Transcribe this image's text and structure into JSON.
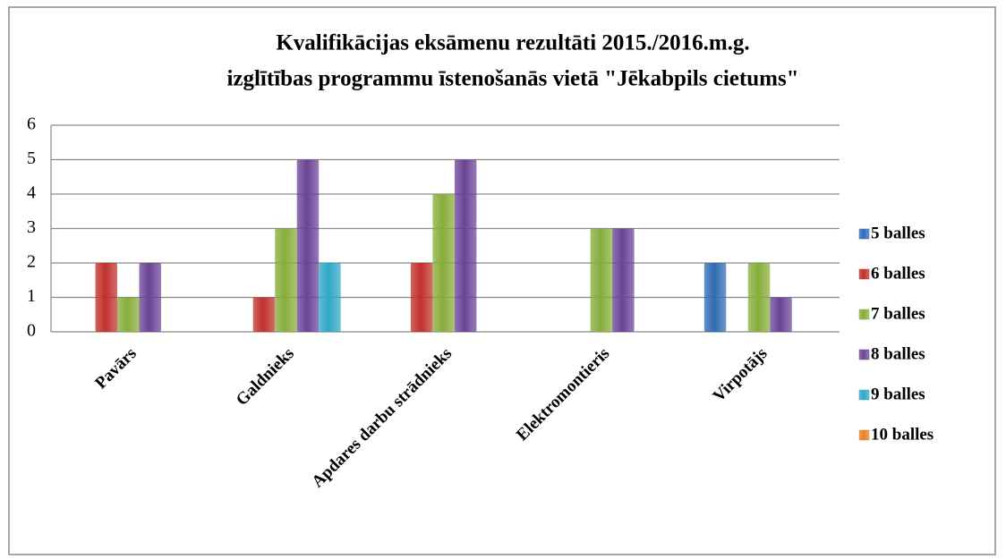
{
  "chart_data": {
    "type": "bar",
    "title": "Kvalifikācijas eksāmenu rezultāti 2015./2016.m.g.",
    "subtitle": "izglītības programmu īstenošanās vietā \"Jēkabpils cietums\"",
    "categories": [
      "Pavārs",
      "Galdnieks",
      "Apdares darbu strādnieks",
      "Elektromontieris",
      "Virpotājs"
    ],
    "series": [
      {
        "name": "5 balles",
        "color": "#2e6cb4",
        "values": [
          0,
          0,
          0,
          0,
          2
        ]
      },
      {
        "name": "6 balles",
        "color": "#c0302c",
        "values": [
          2,
          1,
          2,
          0,
          0
        ]
      },
      {
        "name": "7 balles",
        "color": "#86ad3a",
        "values": [
          1,
          3,
          4,
          3,
          2
        ]
      },
      {
        "name": "8 balles",
        "color": "#6a4495",
        "values": [
          2,
          5,
          5,
          3,
          1
        ]
      },
      {
        "name": "9 balles",
        "color": "#2fa7c7",
        "values": [
          0,
          2,
          0,
          0,
          0
        ]
      },
      {
        "name": "10 balles",
        "color": "#e8821f",
        "values": [
          0,
          0,
          0,
          0,
          0
        ]
      }
    ],
    "ylim": [
      0,
      6
    ],
    "yticks": [
      0,
      1,
      2,
      3,
      4,
      5,
      6
    ],
    "grid": true,
    "legend": "right"
  }
}
